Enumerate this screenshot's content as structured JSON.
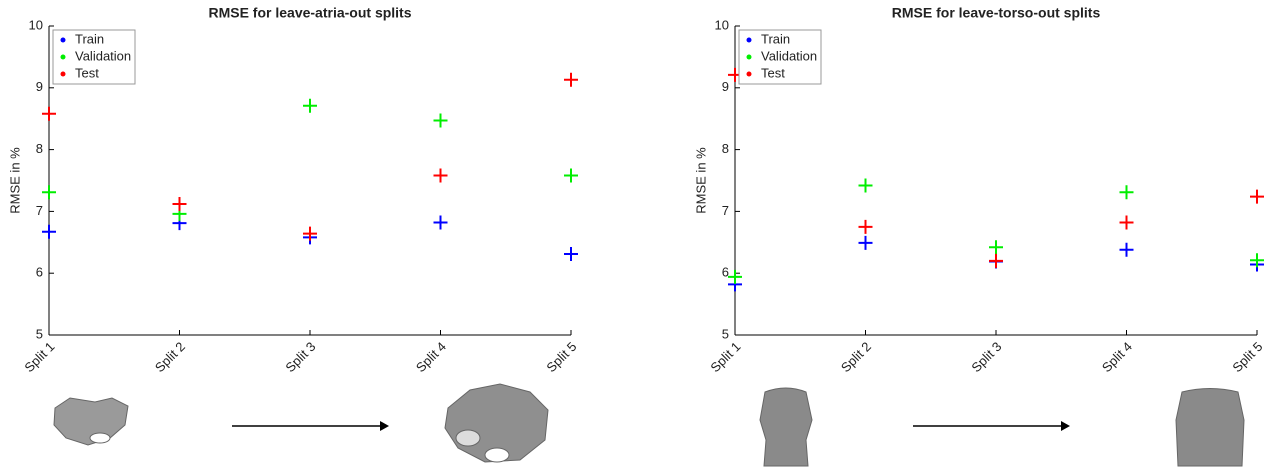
{
  "chart_data": [
    {
      "type": "scatter",
      "title": "RMSE for leave-atria-out splits",
      "y_label": "RMSE in %",
      "categories": [
        "Split 1",
        "Split 2",
        "Split 3",
        "Split 4",
        "Split 5"
      ],
      "series": [
        {
          "name": "Train",
          "color": "#0000ff",
          "values": [
            6.67,
            6.81,
            6.58,
            6.82,
            6.31
          ]
        },
        {
          "name": "Validation",
          "color": "#00ee00",
          "values": [
            7.31,
            6.96,
            8.71,
            8.47,
            7.58
          ]
        },
        {
          "name": "Test",
          "color": "#ff0000",
          "values": [
            8.58,
            7.12,
            6.64,
            7.58,
            9.13
          ]
        }
      ],
      "ylim": [
        5,
        10
      ],
      "yticks": [
        5,
        6,
        7,
        8,
        9,
        10
      ],
      "legend": "upper left"
    },
    {
      "type": "scatter",
      "title": "RMSE for leave-torso-out splits",
      "y_label": "RMSE in %",
      "categories": [
        "Split 1",
        "Split 2",
        "Split 3",
        "Split 4",
        "Split 5"
      ],
      "series": [
        {
          "name": "Train",
          "color": "#0000ff",
          "values": [
            5.82,
            6.49,
            6.19,
            6.38,
            6.14
          ]
        },
        {
          "name": "Validation",
          "color": "#00ee00",
          "values": [
            5.94,
            7.42,
            6.42,
            7.31,
            6.21
          ]
        },
        {
          "name": "Test",
          "color": "#ff0000",
          "values": [
            9.21,
            6.75,
            6.2,
            6.82,
            7.24
          ]
        }
      ],
      "ylim": [
        5,
        10
      ],
      "yticks": [
        5,
        6,
        7,
        8,
        9,
        10
      ],
      "legend": "upper left"
    }
  ]
}
